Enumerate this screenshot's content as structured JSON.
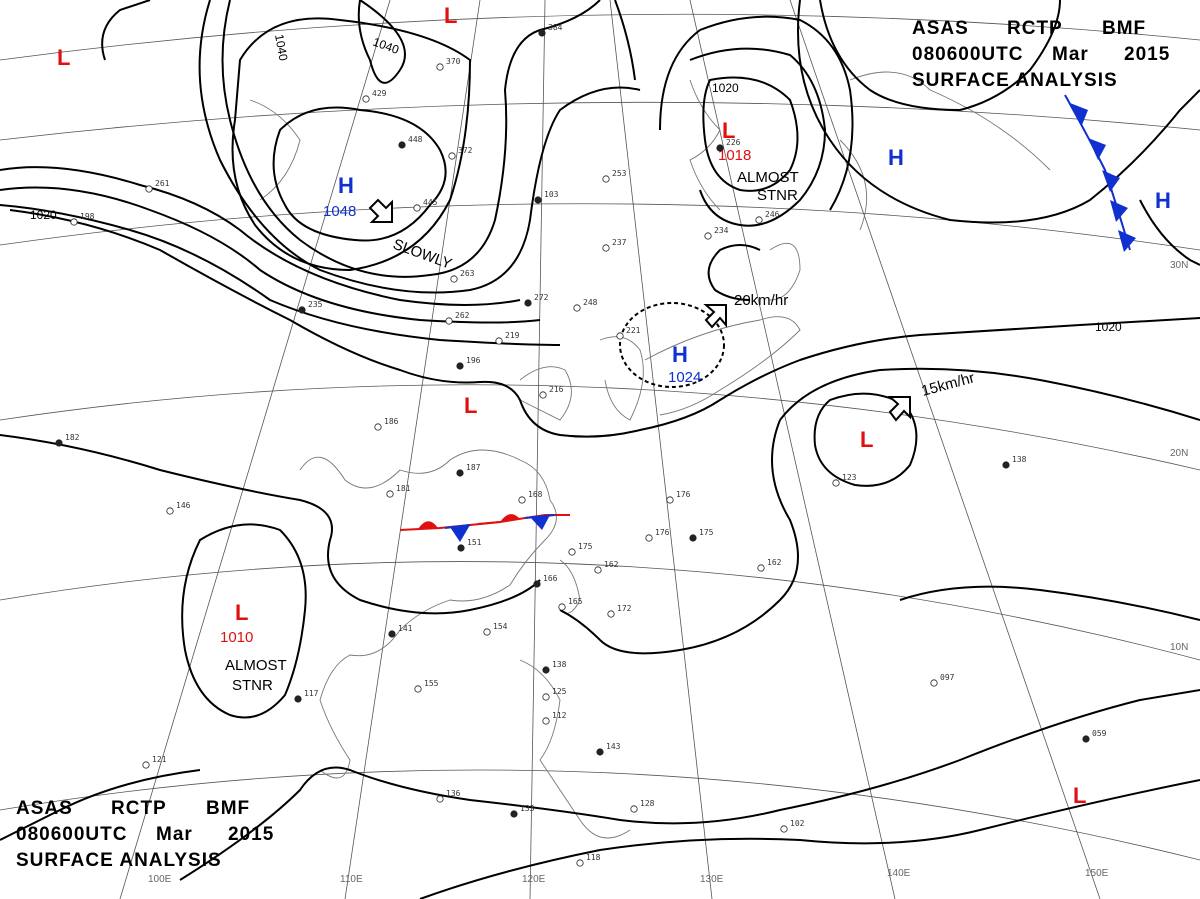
{
  "header_top": {
    "line1": [
      "ASAS",
      "RCTP",
      "BMF"
    ],
    "line2": [
      "080600UTC",
      "Mar",
      "2015"
    ],
    "line3": "SURFACE  ANALYSIS"
  },
  "header_bottom": {
    "line1": [
      "ASAS",
      "RCTP",
      "BMF"
    ],
    "line2": [
      "080600UTC",
      "Mar",
      "2015"
    ],
    "line3": "SURFACE  ANALYSIS"
  },
  "isobar_labels": [
    "1040",
    "1040",
    "1020",
    "1020",
    "1020"
  ],
  "systems": [
    {
      "type": "H",
      "pressure": "1048",
      "motion": "SLOWLY"
    },
    {
      "type": "H",
      "pressure": "1024",
      "motion": "20km/hr"
    },
    {
      "type": "L",
      "pressure": "1018",
      "motion": "ALMOST STNR"
    },
    {
      "type": "L",
      "pressure": "1010",
      "motion": "ALMOST STNR"
    },
    {
      "type": "L",
      "pressure": "",
      "motion": "15km/hr"
    },
    {
      "type": "H",
      "pressure": "",
      "motion": ""
    },
    {
      "type": "H",
      "pressure": "",
      "motion": ""
    },
    {
      "type": "L",
      "pressure": "",
      "motion": ""
    },
    {
      "type": "L",
      "pressure": "",
      "motion": ""
    },
    {
      "type": "L",
      "pressure": "",
      "motion": ""
    },
    {
      "type": "L",
      "pressure": "",
      "motion": ""
    }
  ],
  "notes": {
    "slowly": "SLOWLY",
    "almost_1": "ALMOST",
    "stnr_1": "STNR",
    "almost_2": "ALMOST",
    "stnr_2": "STNR",
    "speed_1": "20km/hr",
    "speed_2": "15km/hr"
  },
  "longitudes": [
    "100E",
    "110E",
    "120E",
    "130E",
    "140E",
    "150E"
  ],
  "latitudes": [
    "30N",
    "20N",
    "10N"
  ],
  "stations": [
    "384",
    "370",
    "429",
    "448",
    "372",
    "445",
    "103",
    "253",
    "237",
    "272",
    "248",
    "219",
    "196",
    "216",
    "186",
    "187",
    "181",
    "168",
    "151",
    "175",
    "162",
    "166",
    "165",
    "172",
    "141",
    "154",
    "155",
    "117",
    "121",
    "136",
    "133",
    "128",
    "118",
    "138",
    "125",
    "112",
    "143",
    "176",
    "176",
    "175",
    "162",
    "097",
    "059",
    "102",
    "123",
    "138",
    "246",
    "234",
    "226",
    "221",
    "146",
    "182",
    "261",
    "198",
    "235",
    "263",
    "262"
  ],
  "colors": {
    "low": "#e01010",
    "high": "#1030d0",
    "isobar": "#000000",
    "grid": "#555555",
    "coast": "#777777"
  }
}
